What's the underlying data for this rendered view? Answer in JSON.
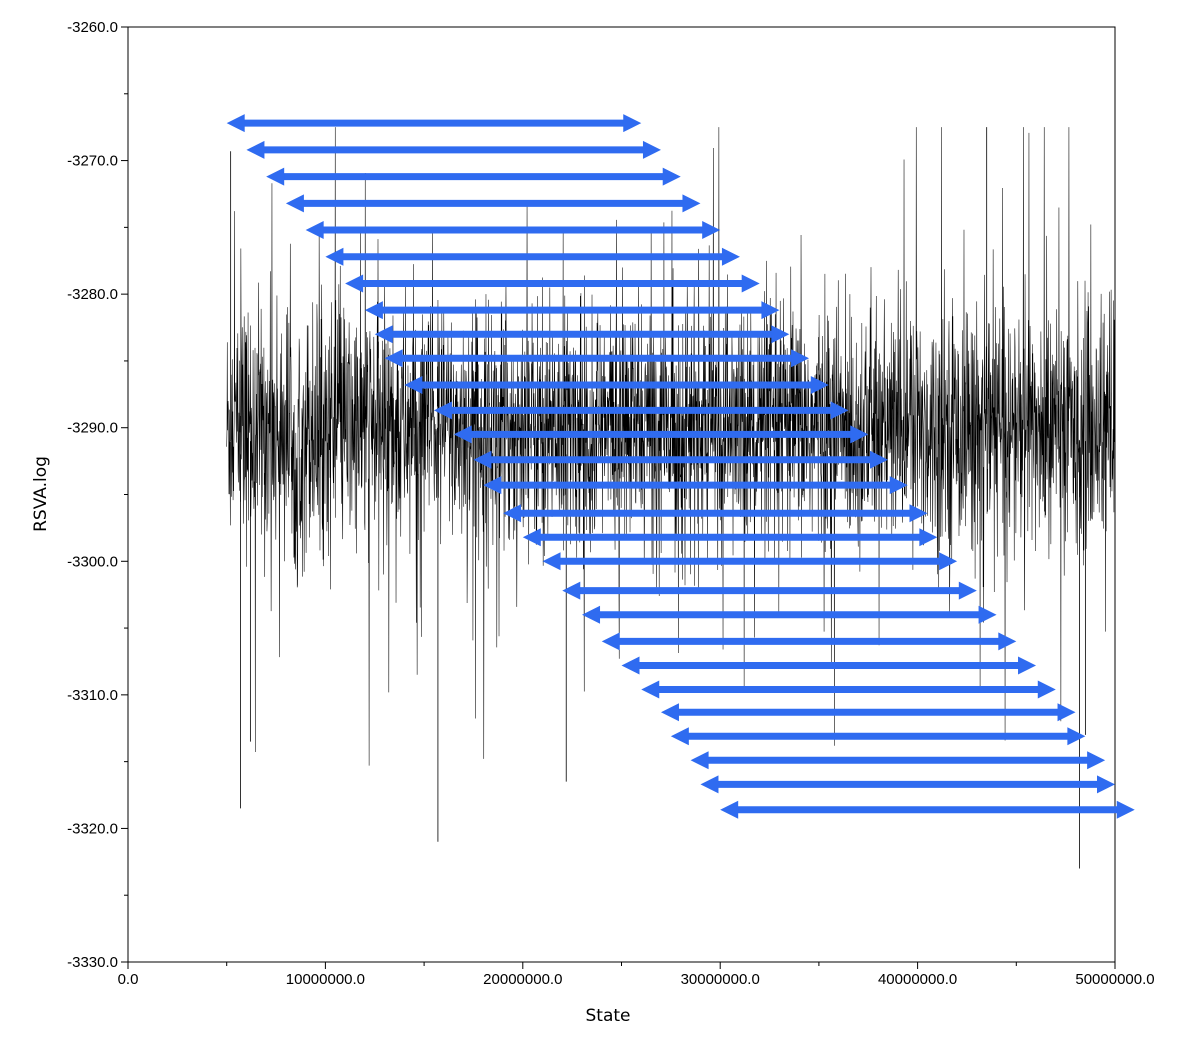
{
  "chart_data": {
    "type": "line",
    "title": "",
    "xlabel": "State",
    "ylabel": "RSVA.log",
    "xlim": [
      0,
      50000000
    ],
    "ylim": [
      -3330,
      -3260
    ],
    "x_ticks": [
      0,
      10000000,
      20000000,
      30000000,
      40000000,
      50000000
    ],
    "x_tick_labels": [
      "0.0",
      "10000000.0",
      "20000000.0",
      "30000000.0",
      "40000000.0",
      "50000000.0"
    ],
    "y_ticks": [
      -3260,
      -3270,
      -3280,
      -3290,
      -3300,
      -3310,
      -3320,
      -3330
    ],
    "y_tick_labels": [
      "-3260.0",
      "-3270.0",
      "-3280.0",
      "-3290.0",
      "-3300.0",
      "-3310.0",
      "-3320.0",
      "-3330.0"
    ],
    "trace": {
      "x_start": 5000000,
      "x_end": 50000000,
      "mean": -3290,
      "typical_range": [
        -3300,
        -3280
      ],
      "max": -3267.5,
      "min": -3323,
      "color": "#000000"
    },
    "windows": {
      "color": "#2f6bf0",
      "description": "Double-headed arrows marking successive sliding windows of equal width (~20,000,000 states)",
      "items": [
        {
          "x_start": 5000000,
          "x_end": 26000000,
          "y": -3267.2
        },
        {
          "x_start": 6000000,
          "x_end": 27000000,
          "y": -3269.2
        },
        {
          "x_start": 7000000,
          "x_end": 28000000,
          "y": -3271.2
        },
        {
          "x_start": 8000000,
          "x_end": 29000000,
          "y": -3273.2
        },
        {
          "x_start": 9000000,
          "x_end": 30000000,
          "y": -3275.2
        },
        {
          "x_start": 10000000,
          "x_end": 31000000,
          "y": -3277.2
        },
        {
          "x_start": 11000000,
          "x_end": 32000000,
          "y": -3279.2
        },
        {
          "x_start": 12000000,
          "x_end": 33000000,
          "y": -3281.2
        },
        {
          "x_start": 12500000,
          "x_end": 33500000,
          "y": -3283.0
        },
        {
          "x_start": 13000000,
          "x_end": 34500000,
          "y": -3284.8
        },
        {
          "x_start": 14000000,
          "x_end": 35500000,
          "y": -3286.8
        },
        {
          "x_start": 15500000,
          "x_end": 36500000,
          "y": -3288.7
        },
        {
          "x_start": 16500000,
          "x_end": 37500000,
          "y": -3290.5
        },
        {
          "x_start": 17500000,
          "x_end": 38500000,
          "y": -3292.4
        },
        {
          "x_start": 18000000,
          "x_end": 39500000,
          "y": -3294.3
        },
        {
          "x_start": 19000000,
          "x_end": 40500000,
          "y": -3296.4
        },
        {
          "x_start": 20000000,
          "x_end": 41000000,
          "y": -3298.2
        },
        {
          "x_start": 21000000,
          "x_end": 42000000,
          "y": -3300.0
        },
        {
          "x_start": 22000000,
          "x_end": 43000000,
          "y": -3302.2
        },
        {
          "x_start": 23000000,
          "x_end": 44000000,
          "y": -3304.0
        },
        {
          "x_start": 24000000,
          "x_end": 45000000,
          "y": -3306.0
        },
        {
          "x_start": 25000000,
          "x_end": 46000000,
          "y": -3307.8
        },
        {
          "x_start": 26000000,
          "x_end": 47000000,
          "y": -3309.6
        },
        {
          "x_start": 27000000,
          "x_end": 48000000,
          "y": -3311.3
        },
        {
          "x_start": 27500000,
          "x_end": 48500000,
          "y": -3313.1
        },
        {
          "x_start": 28500000,
          "x_end": 49500000,
          "y": -3314.9
        },
        {
          "x_start": 29000000,
          "x_end": 50000000,
          "y": -3316.7
        },
        {
          "x_start": 30000000,
          "x_end": 51000000,
          "y": -3318.6
        }
      ]
    }
  }
}
